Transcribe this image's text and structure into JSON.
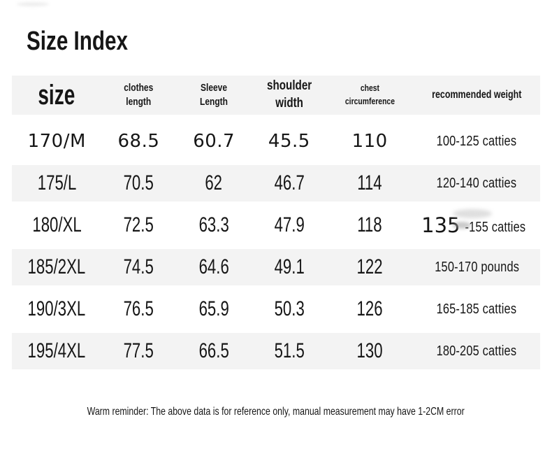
{
  "title": "Size Index",
  "table": {
    "header": {
      "size": "size",
      "clothes_length": [
        "clothes",
        "length"
      ],
      "sleeve_length": [
        "Sleeve",
        "Length"
      ],
      "shoulder_width": [
        "shoulder",
        "width"
      ],
      "chest_circumference": [
        "chest",
        "circumference"
      ],
      "recommended_weight": "recommended weight"
    },
    "rows": [
      {
        "size": "170/M",
        "clothes_length": "68.5",
        "sleeve_length": "60.7",
        "shoulder_width": "45.5",
        "chest_circumference": "110",
        "recommended_weight": "100-125 catties"
      },
      {
        "size": "175/L",
        "clothes_length": "70.5",
        "sleeve_length": "62",
        "shoulder_width": "46.7",
        "chest_circumference": "114",
        "recommended_weight": "120-140 catties"
      },
      {
        "size": "180/XL",
        "clothes_length": "72.5",
        "sleeve_length": "63.3",
        "shoulder_width": "47.9",
        "chest_circumference": "118",
        "recommended_weight": "135-155 catties",
        "weight_parts": {
          "big": "135",
          "rest": "-155 catties"
        }
      },
      {
        "size": "185/2XL",
        "clothes_length": "74.5",
        "sleeve_length": "64.6",
        "shoulder_width": "49.1",
        "chest_circumference": "122",
        "recommended_weight": "150-170 pounds"
      },
      {
        "size": "190/3XL",
        "clothes_length": "76.5",
        "sleeve_length": "65.9",
        "shoulder_width": "50.3",
        "chest_circumference": "126",
        "recommended_weight": "165-185 catties"
      },
      {
        "size": "195/4XL",
        "clothes_length": "77.5",
        "sleeve_length": "66.5",
        "shoulder_width": "51.5",
        "chest_circumference": "130",
        "recommended_weight": "180-205 catties"
      }
    ]
  },
  "footer": "Warm reminder: The above data is for reference only, manual measurement may have 1-2CM error",
  "colors": {
    "background": "#ffffff",
    "stripe": "#f3f3f3",
    "text": "#161616"
  }
}
